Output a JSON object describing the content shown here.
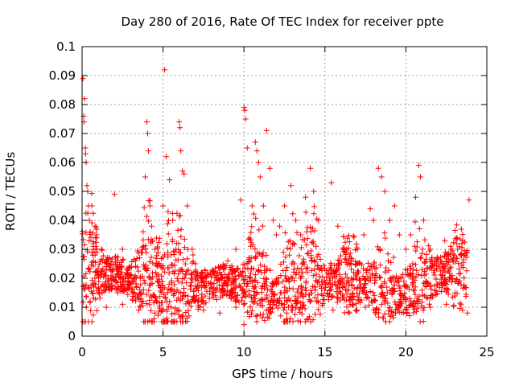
{
  "chart_data": {
    "type": "scatter",
    "title": "Day 280 of 2016, Rate Of TEC Index for receiver ppte",
    "xlabel": "GPS time / hours",
    "ylabel": "ROTI / TECUs",
    "xlim": [
      0,
      25
    ],
    "ylim": [
      0,
      0.1
    ],
    "grid": true,
    "marker": "+",
    "marker_color": "#ff0000",
    "x_ticks": [
      0,
      5,
      10,
      15,
      20,
      25
    ],
    "x_tick_labels": [
      "0",
      "5",
      "10",
      "15",
      "20",
      "25"
    ],
    "y_ticks": [
      0,
      0.01,
      0.02,
      0.03,
      0.04,
      0.05,
      0.06,
      0.07,
      0.08,
      0.09,
      0.1
    ],
    "y_tick_labels": [
      "0",
      "0.01",
      "0.02",
      "0.03",
      "0.04",
      "0.05",
      "0.06",
      "0.07",
      "0.08",
      "0.09",
      "0.1"
    ],
    "series": [
      {
        "name": "ROTI",
        "points": [
          [
            0.05,
            0.089
          ],
          [
            0.1,
            0.076
          ],
          [
            0.12,
            0.074
          ],
          [
            0.15,
            0.082
          ],
          [
            0.2,
            0.065
          ],
          [
            0.22,
            0.063
          ],
          [
            0.25,
            0.06
          ],
          [
            0.3,
            0.052
          ],
          [
            0.35,
            0.05
          ],
          [
            0.4,
            0.045
          ],
          [
            0.45,
            0.04
          ],
          [
            0.5,
            0.036
          ],
          [
            0.6,
            0.045
          ],
          [
            0.7,
            0.03
          ],
          [
            0.8,
            0.028
          ],
          [
            0.9,
            0.035
          ],
          [
            1.0,
            0.022
          ],
          [
            1.2,
            0.03
          ],
          [
            1.4,
            0.018
          ],
          [
            1.6,
            0.025
          ],
          [
            1.8,
            0.02
          ],
          [
            2.0,
            0.049
          ],
          [
            2.2,
            0.015
          ],
          [
            2.5,
            0.03
          ],
          [
            2.8,
            0.022
          ],
          [
            3.0,
            0.018
          ],
          [
            3.3,
            0.026
          ],
          [
            3.6,
            0.02
          ],
          [
            3.9,
            0.055
          ],
          [
            4.0,
            0.074
          ],
          [
            4.05,
            0.07
          ],
          [
            4.1,
            0.064
          ],
          [
            4.2,
            0.045
          ],
          [
            4.3,
            0.038
          ],
          [
            4.5,
            0.03
          ],
          [
            4.7,
            0.025
          ],
          [
            5.0,
            0.045
          ],
          [
            5.1,
            0.092
          ],
          [
            5.2,
            0.062
          ],
          [
            5.4,
            0.054
          ],
          [
            5.6,
            0.04
          ],
          [
            5.8,
            0.03
          ],
          [
            6.0,
            0.074
          ],
          [
            6.05,
            0.072
          ],
          [
            6.1,
            0.064
          ],
          [
            6.2,
            0.057
          ],
          [
            6.3,
            0.056
          ],
          [
            6.5,
            0.045
          ],
          [
            6.8,
            0.03
          ],
          [
            7.0,
            0.025
          ],
          [
            7.5,
            0.02
          ],
          [
            8.0,
            0.018
          ],
          [
            8.5,
            0.022
          ],
          [
            9.0,
            0.026
          ],
          [
            9.5,
            0.03
          ],
          [
            9.8,
            0.047
          ],
          [
            10.0,
            0.079
          ],
          [
            10.05,
            0.078
          ],
          [
            10.1,
            0.075
          ],
          [
            10.2,
            0.065
          ],
          [
            10.5,
            0.045
          ],
          [
            10.7,
            0.067
          ],
          [
            10.8,
            0.064
          ],
          [
            10.9,
            0.06
          ],
          [
            11.0,
            0.055
          ],
          [
            11.2,
            0.045
          ],
          [
            11.4,
            0.071
          ],
          [
            11.6,
            0.058
          ],
          [
            11.8,
            0.04
          ],
          [
            12.0,
            0.035
          ],
          [
            12.2,
            0.038
          ],
          [
            12.5,
            0.045
          ],
          [
            12.9,
            0.052
          ],
          [
            13.2,
            0.04
          ],
          [
            13.5,
            0.035
          ],
          [
            13.8,
            0.048
          ],
          [
            14.1,
            0.058
          ],
          [
            14.3,
            0.05
          ],
          [
            14.6,
            0.04
          ],
          [
            15.0,
            0.018
          ],
          [
            15.4,
            0.053
          ],
          [
            15.8,
            0.038
          ],
          [
            16.2,
            0.03
          ],
          [
            16.6,
            0.025
          ],
          [
            17.0,
            0.03
          ],
          [
            17.4,
            0.035
          ],
          [
            17.8,
            0.044
          ],
          [
            18.0,
            0.04
          ],
          [
            18.3,
            0.058
          ],
          [
            18.5,
            0.055
          ],
          [
            18.7,
            0.05
          ],
          [
            19.0,
            0.04
          ],
          [
            19.3,
            0.045
          ],
          [
            19.6,
            0.035
          ],
          [
            20.0,
            0.03
          ],
          [
            20.3,
            0.035
          ],
          [
            20.6,
            0.048
          ],
          [
            20.8,
            0.059
          ],
          [
            20.9,
            0.055
          ],
          [
            21.1,
            0.04
          ],
          [
            21.5,
            0.03
          ],
          [
            22.0,
            0.025
          ],
          [
            22.4,
            0.033
          ],
          [
            22.8,
            0.03
          ],
          [
            23.2,
            0.03
          ],
          [
            23.6,
            0.028
          ],
          [
            23.9,
            0.047
          ],
          [
            0.5,
            0.012
          ],
          [
            1.5,
            0.01
          ],
          [
            2.5,
            0.011
          ],
          [
            3.5,
            0.009
          ],
          [
            4.5,
            0.008
          ],
          [
            5.5,
            0.01
          ],
          [
            6.5,
            0.012
          ],
          [
            7.5,
            0.009
          ],
          [
            8.5,
            0.008
          ],
          [
            9.5,
            0.01
          ],
          [
            10.0,
            0.004
          ],
          [
            10.5,
            0.012
          ],
          [
            11.5,
            0.009
          ],
          [
            12.5,
            0.011
          ],
          [
            12.6,
            0.005
          ],
          [
            13.5,
            0.01
          ],
          [
            14.5,
            0.012
          ],
          [
            15.5,
            0.009
          ],
          [
            16.5,
            0.008
          ],
          [
            17.5,
            0.01
          ],
          [
            18.5,
            0.011
          ],
          [
            19.5,
            0.009
          ],
          [
            20.5,
            0.012
          ],
          [
            21.5,
            0.01
          ],
          [
            22.5,
            0.011
          ],
          [
            23.5,
            0.009
          ],
          [
            23.8,
            0.008
          ]
        ],
        "fill_points": 1800
      }
    ]
  }
}
